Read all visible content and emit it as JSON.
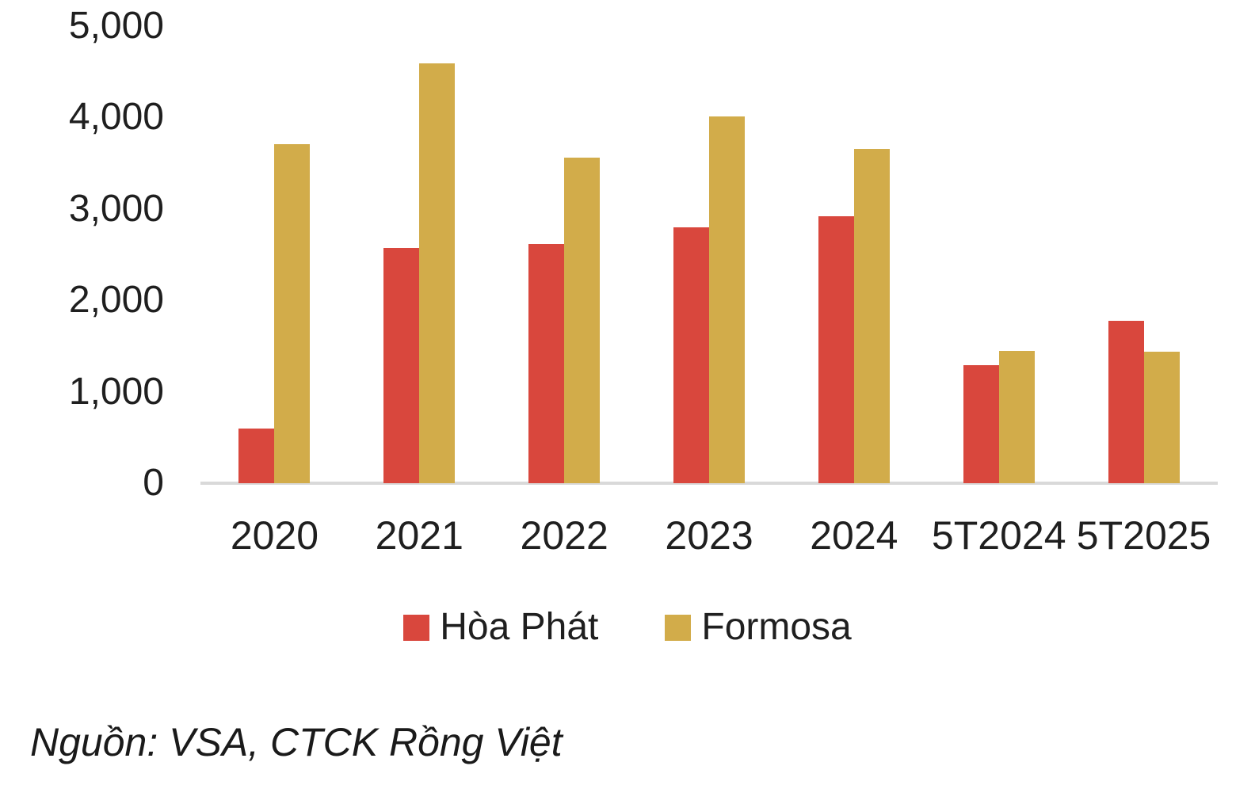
{
  "chart_data": {
    "type": "bar",
    "categories": [
      "2020",
      "2021",
      "2022",
      "2023",
      "2024",
      "5T2024",
      "5T2025"
    ],
    "series": [
      {
        "name": "Hòa Phát",
        "color": "#d9473d",
        "values": [
          600,
          2570,
          2620,
          2800,
          2920,
          1290,
          1780
        ]
      },
      {
        "name": "Formosa",
        "color": "#d2ac4a",
        "values": [
          3710,
          4590,
          3560,
          4010,
          3660,
          1450,
          1440
        ]
      }
    ],
    "title": "",
    "xlabel": "",
    "ylabel": "",
    "ylim": [
      0,
      5000
    ],
    "yticks": [
      0,
      1000,
      2000,
      3000,
      4000,
      5000
    ],
    "ytick_labels": [
      "0",
      "1,000",
      "2,000",
      "3,000",
      "4,000",
      "5,000"
    ],
    "grid": false,
    "legend_position": "bottom"
  },
  "legend": {
    "hoa_phat_label": "Hòa Phát",
    "formosa_label": "Formosa"
  },
  "source_note": "Nguồn: VSA, CTCK Rồng Việt",
  "colors": {
    "hoa_phat": "#d9473d",
    "formosa": "#d2ac4a",
    "axis_line": "#d9d9d9",
    "text": "#1f1f1f"
  }
}
